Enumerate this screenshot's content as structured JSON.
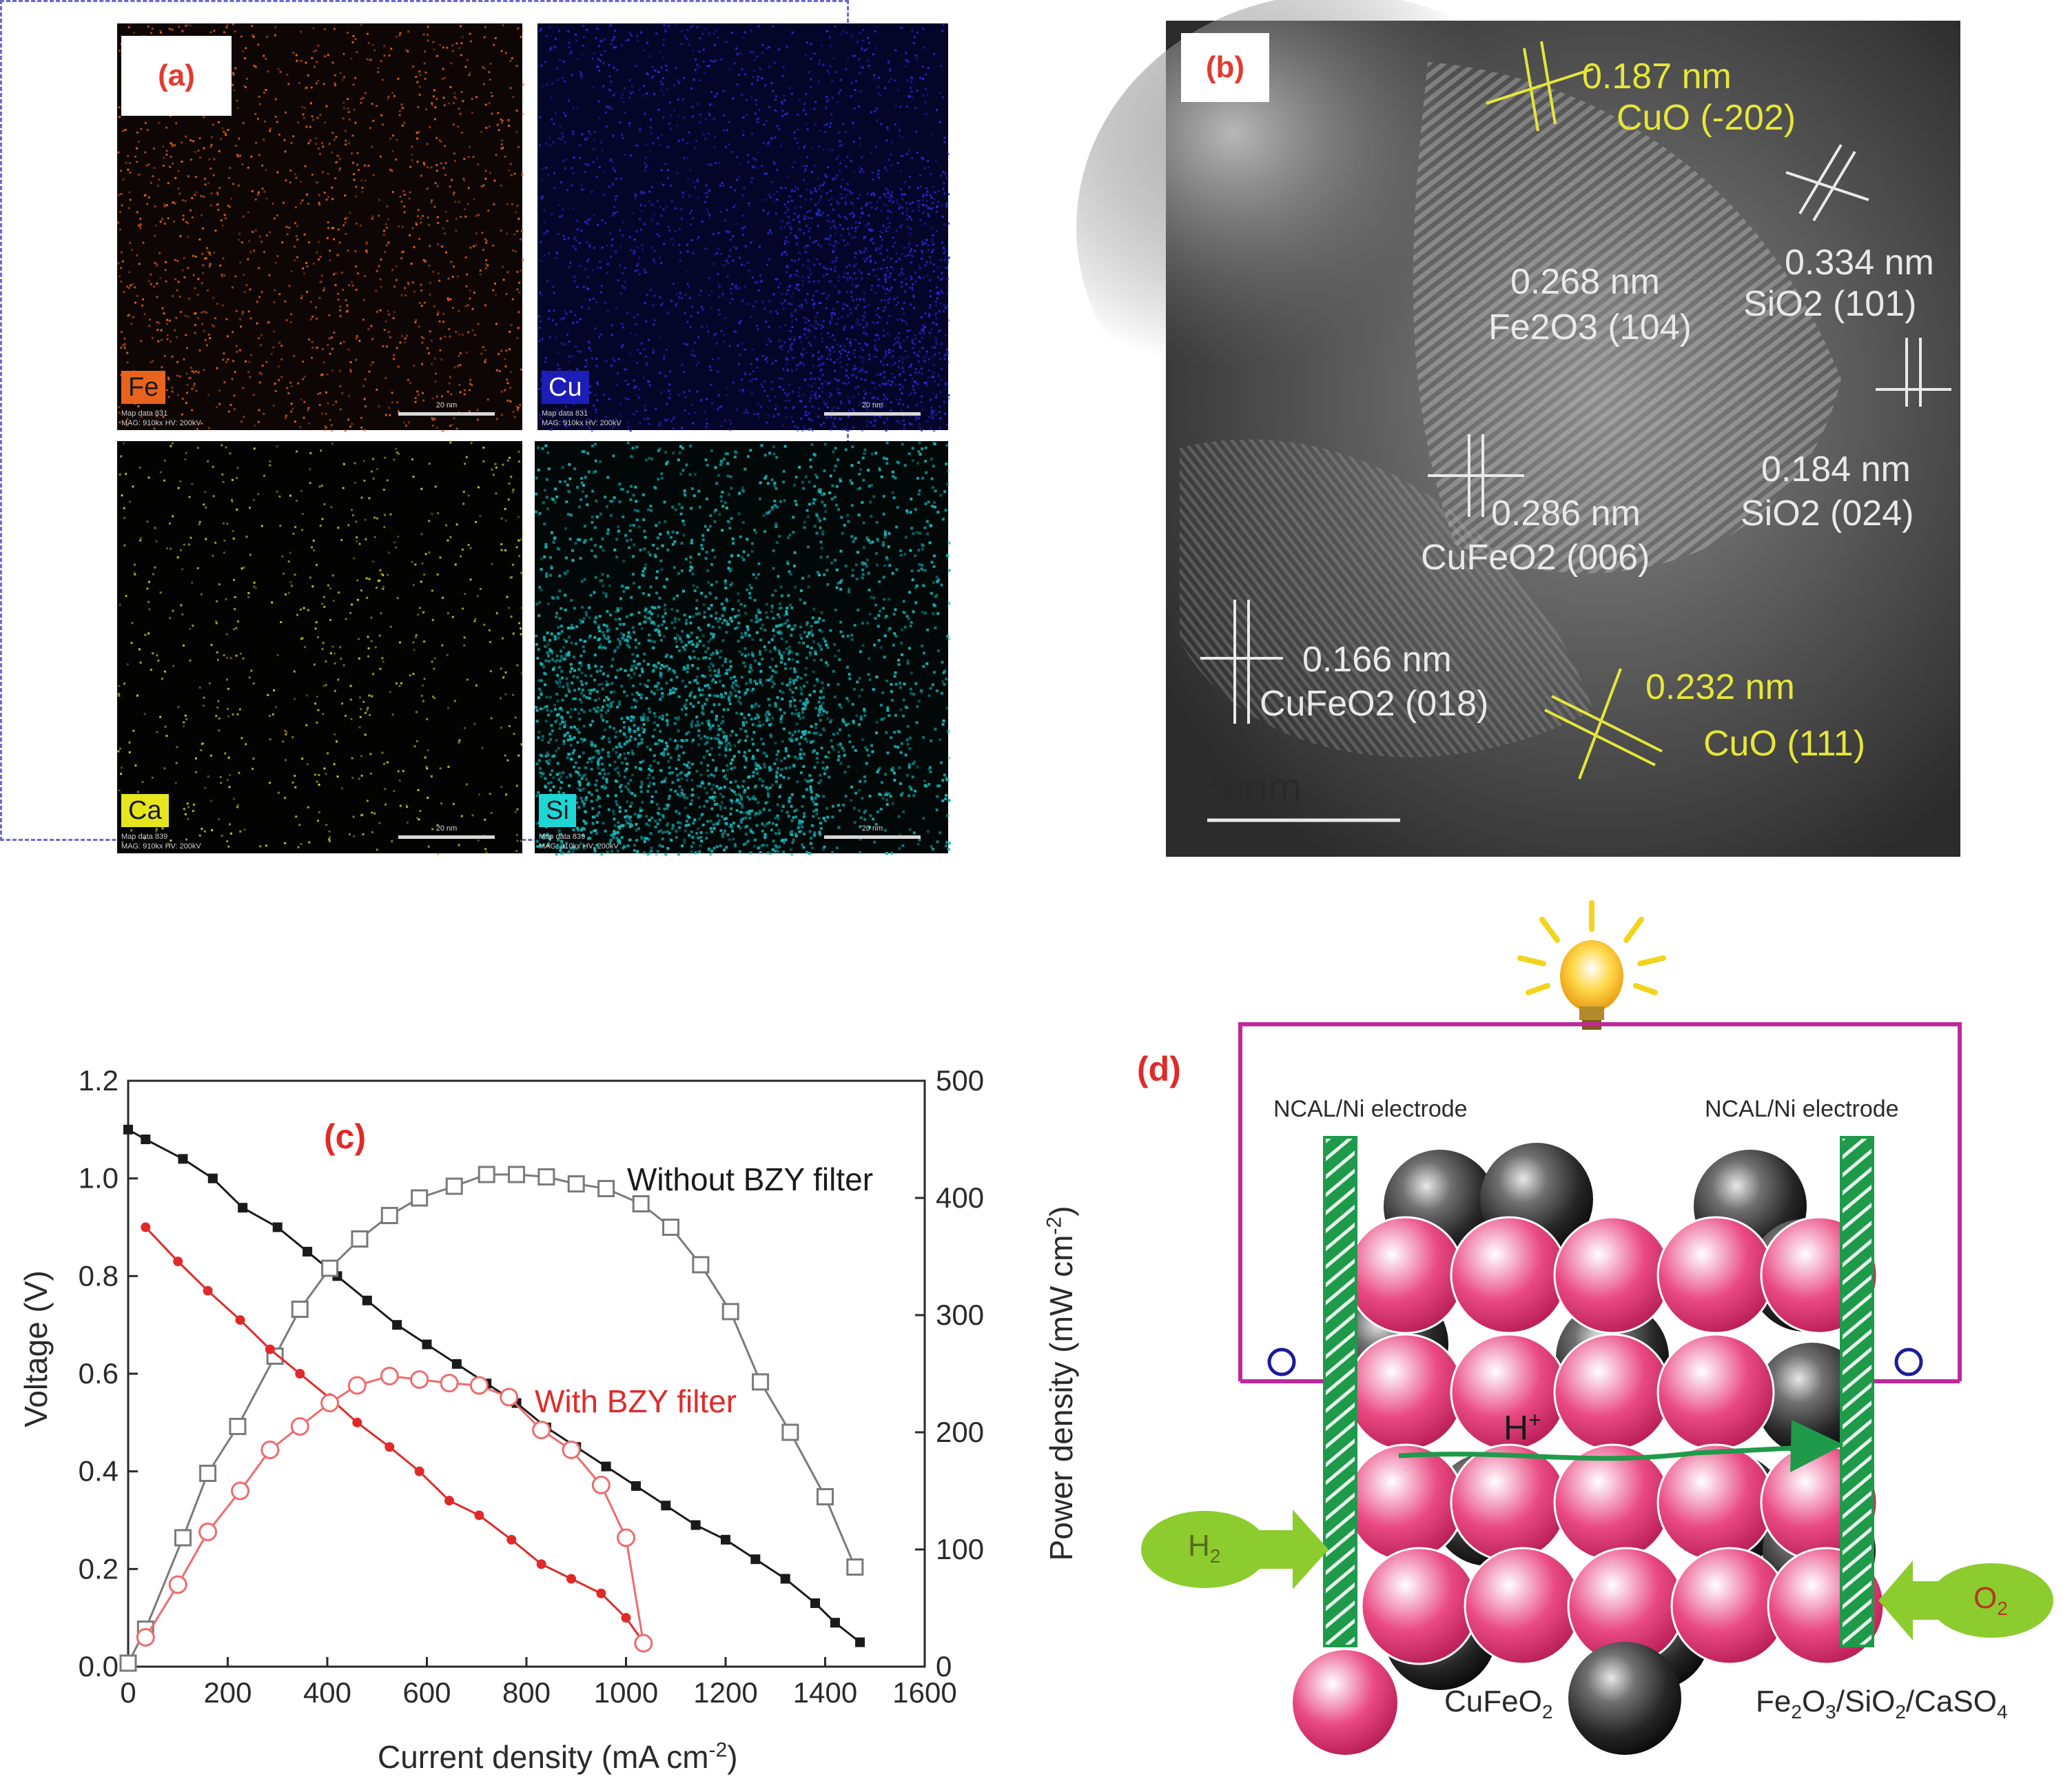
{
  "panel_a": {
    "label": "(a)",
    "maps": [
      {
        "element": "Fe",
        "tag_bg": "#e8641e",
        "tag_color": "#1a1a1a",
        "dot": "#e0621f",
        "bg": "#0d0604",
        "meta1": "Map data 831",
        "meta2": "MAG: 910kx  HV: 200kV",
        "scale": "20 nm"
      },
      {
        "element": "Cu",
        "tag_bg": "#1d1db8",
        "tag_color": "#ffffff",
        "dot": "#2a2ad8",
        "bg": "#05052a",
        "meta1": "Map data 831",
        "meta2": "MAG: 910kx  HV: 200kV",
        "scale": "20 nm"
      },
      {
        "element": "Ca",
        "tag_bg": "#e6e61e",
        "tag_color": "#1a1a1a",
        "dot": "#c8c81e",
        "bg": "#030302",
        "meta1": "Map data 839",
        "meta2": "MAG: 910kx  HV: 200kV",
        "scale": "20 nm"
      },
      {
        "element": "Si",
        "tag_bg": "#1ed6d6",
        "tag_color": "#1a1a1a",
        "dot": "#19b7b7",
        "bg": "#020808",
        "meta1": "Map data 839",
        "meta2": "MAG: 910kx  HV: 200kV",
        "scale": "20 nm"
      }
    ]
  },
  "panel_b": {
    "label": "(b)",
    "annotations": [
      {
        "d": "0.187 nm",
        "plane": "CuO (-202)",
        "color": "yellow"
      },
      {
        "d": "0.334 nm",
        "plane": "SiO2 (101)",
        "color": "white"
      },
      {
        "d": "0.268 nm",
        "plane": "Fe2O3 (104)",
        "color": "white"
      },
      {
        "d": "0.184 nm",
        "plane": "SiO2 (024)",
        "color": "white"
      },
      {
        "d": "0.286 nm",
        "plane": "CuFeO2 (006)",
        "color": "white"
      },
      {
        "d": "0.166 nm",
        "plane": "CuFeO2 (018)",
        "color": "white"
      },
      {
        "d": "0.232 nm",
        "plane": "CuO (111)",
        "color": "yellow"
      }
    ],
    "scale_bar": "5 nm"
  },
  "panel_c": {
    "label": "(c)",
    "xlabel": "Current density (mA cm",
    "xlabel_sup": "-2",
    "xlabel_end": ")",
    "ylabel": "Voltage (V)",
    "y2label": "Power density (mW cm",
    "y2label_sup": "-2",
    "y2label_end": ")",
    "label_without": "Without BZY filter",
    "label_with": "With BZY filter"
  },
  "chart_data": {
    "type": "line",
    "xlabel": "Current density (mA cm-2)",
    "ylabel": "Voltage (V)",
    "y2label": "Power density (mW cm-2)",
    "xlim": [
      0,
      1600
    ],
    "ylim": [
      0,
      1.2
    ],
    "y2lim": [
      0,
      500
    ],
    "xticks": [
      0,
      200,
      400,
      600,
      800,
      1000,
      1200,
      1400,
      1600
    ],
    "yticks": [
      0.0,
      0.2,
      0.4,
      0.6,
      0.8,
      1.0,
      1.2
    ],
    "y2ticks": [
      0,
      100,
      200,
      300,
      400,
      500
    ],
    "series": [
      {
        "name": "Without BZY filter",
        "kind": "voltage",
        "axis": "left",
        "color": "#1a1a1a",
        "marker": "filled-square",
        "x": [
          0,
          35,
          110,
          170,
          230,
          300,
          360,
          420,
          480,
          540,
          600,
          660,
          720,
          780,
          840,
          900,
          960,
          1020,
          1080,
          1140,
          1200,
          1260,
          1320,
          1380,
          1420,
          1470
        ],
        "y": [
          1.1,
          1.08,
          1.04,
          1.0,
          0.94,
          0.9,
          0.85,
          0.8,
          0.75,
          0.7,
          0.66,
          0.62,
          0.58,
          0.54,
          0.49,
          0.45,
          0.41,
          0.37,
          0.33,
          0.29,
          0.26,
          0.22,
          0.18,
          0.13,
          0.09,
          0.05
        ]
      },
      {
        "name": "Without BZY filter",
        "kind": "power",
        "axis": "right",
        "color": "#7a7a7a",
        "marker": "open-square",
        "x": [
          0,
          35,
          110,
          160,
          220,
          295,
          345,
          405,
          465,
          525,
          585,
          655,
          720,
          780,
          840,
          900,
          960,
          1030,
          1090,
          1150,
          1210,
          1270,
          1330,
          1400,
          1460
        ],
        "y": [
          3,
          32,
          110,
          165,
          205,
          265,
          305,
          340,
          365,
          385,
          400,
          410,
          420,
          420,
          418,
          412,
          408,
          395,
          375,
          343,
          303,
          243,
          200,
          145,
          85
        ]
      },
      {
        "name": "With BZY filter",
        "kind": "voltage",
        "axis": "left",
        "color": "#e02a2a",
        "marker": "filled-circle",
        "x": [
          35,
          100,
          160,
          225,
          285,
          345,
          405,
          460,
          525,
          585,
          645,
          705,
          770,
          830,
          890,
          950,
          1000,
          1035
        ],
        "y": [
          0.9,
          0.83,
          0.77,
          0.71,
          0.65,
          0.6,
          0.55,
          0.5,
          0.45,
          0.4,
          0.34,
          0.31,
          0.26,
          0.21,
          0.18,
          0.15,
          0.1,
          0.05
        ]
      },
      {
        "name": "With BZY filter",
        "kind": "power",
        "axis": "right",
        "color": "#ef6b6b",
        "marker": "open-circle",
        "x": [
          35,
          100,
          160,
          225,
          285,
          345,
          405,
          460,
          525,
          585,
          645,
          705,
          765,
          830,
          890,
          950,
          1000,
          1035
        ],
        "y": [
          25,
          70,
          115,
          150,
          185,
          205,
          225,
          240,
          248,
          245,
          242,
          240,
          230,
          202,
          185,
          155,
          110,
          20
        ]
      }
    ]
  },
  "panel_d": {
    "label": "(d)",
    "electrode_left": "NCAL/Ni electrode",
    "electrode_right": "NCAL/Ni electrode",
    "proton": "H",
    "proton_sup": "+",
    "gas_in": "H",
    "gas_in_sub": "2",
    "gas_out": "O",
    "gas_out_sub": "2",
    "legend_pink": "CuFeO",
    "legend_pink_sub": "2",
    "legend_black": "Fe",
    "legend_black_rest": [
      "2",
      "O",
      "3",
      "/SiO",
      "2",
      "/CaSO",
      "4"
    ],
    "colors": {
      "circuit": "#c0289b",
      "electrode": "#1f9a4a",
      "pink": "#e83a78",
      "gas": "#8ccc2e",
      "arrow": "#1f9a4a"
    }
  }
}
